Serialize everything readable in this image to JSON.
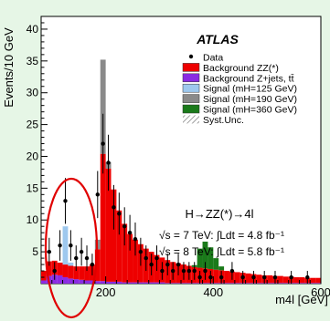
{
  "chart_data": {
    "type": "bar",
    "stacked": true,
    "title": "ATLAS",
    "xlabel": "m4l [GeV]",
    "ylabel": "Events/10 GeV",
    "xlim": [
      80,
      600
    ],
    "ylim": [
      0,
      42
    ],
    "x_ticks": [
      "200",
      "400",
      "600"
    ],
    "y_ticks": [
      "5",
      "10",
      "15",
      "20",
      "25",
      "30",
      "35",
      "40"
    ],
    "bin_width": 10,
    "bin_low_edges": [
      80,
      90,
      100,
      110,
      120,
      130,
      140,
      150,
      160,
      170,
      180,
      190,
      200,
      210,
      220,
      230,
      240,
      250,
      260,
      270,
      280,
      290,
      300,
      310,
      320,
      330,
      340,
      350,
      360,
      370,
      380,
      390,
      400,
      410,
      420,
      430,
      440,
      450,
      460,
      470,
      480,
      490,
      500,
      510,
      520,
      530,
      540,
      550,
      560,
      570,
      580,
      590
    ],
    "series": [
      {
        "name": "Background Z+jets, tt̄",
        "color": "#8a2be2",
        "values": [
          0.5,
          1.2,
          1.4,
          1.3,
          1.0,
          0.8,
          0.7,
          0.6,
          0.5,
          0.5,
          0.4,
          0.4,
          0.3,
          0.3,
          0.3,
          0.2,
          0.2,
          0.2,
          0.2,
          0.2,
          0.2,
          0.2,
          0.2,
          0.1,
          0.1,
          0.1,
          0.1,
          0.1,
          0.1,
          0.1,
          0.1,
          0.1,
          0.1,
          0.1,
          0.1,
          0.1,
          0.1,
          0.1,
          0.1,
          0.1,
          0.1,
          0.1,
          0.1,
          0.1,
          0.1,
          0.1,
          0.1,
          0.1,
          0.1,
          0.1,
          0.1,
          0.1
        ]
      },
      {
        "name": "Background ZZ(*)",
        "color": "#ee0000",
        "values": [
          1.5,
          2.3,
          2.2,
          2.0,
          2.0,
          2.0,
          2.0,
          2.1,
          2.2,
          2.5,
          5.0,
          20.0,
          17.8,
          14.5,
          11.2,
          9.2,
          7.6,
          6.7,
          6.0,
          5.3,
          4.8,
          4.3,
          3.9,
          3.6,
          3.3,
          3.1,
          2.9,
          2.7,
          2.5,
          2.4,
          2.3,
          2.2,
          2.1,
          2.0,
          1.9,
          1.8,
          1.7,
          1.6,
          1.5,
          1.4,
          1.3,
          1.2,
          1.2,
          1.1,
          1.1,
          1.0,
          1.0,
          0.9,
          0.9,
          0.8,
          0.8,
          0.8
        ]
      },
      {
        "name": "Signal (mH=125 GeV)",
        "color": "#9ec8ee",
        "values": [
          0,
          0,
          0,
          0,
          6.0,
          0.5,
          0,
          0,
          0,
          0,
          0,
          0,
          0,
          0,
          0,
          0,
          0,
          0,
          0,
          0,
          0,
          0,
          0,
          0,
          0,
          0,
          0,
          0,
          0,
          0,
          0,
          0,
          0,
          0,
          0,
          0,
          0,
          0,
          0,
          0,
          0,
          0,
          0,
          0,
          0,
          0,
          0,
          0,
          0,
          0,
          0,
          0
        ]
      },
      {
        "name": "Signal (mH=190 GeV)",
        "color": "#8a8a8a",
        "values": [
          0,
          0,
          0,
          0,
          0,
          0,
          0,
          0,
          0,
          0,
          1.5,
          14.8,
          1.0,
          0,
          0,
          0,
          0,
          0,
          0,
          0,
          0,
          0,
          0,
          0,
          0,
          0,
          0,
          0,
          0,
          0,
          0,
          0,
          0,
          0,
          0,
          0,
          0,
          0,
          0,
          0,
          0,
          0,
          0,
          0,
          0,
          0,
          0,
          0,
          0,
          0,
          0,
          0
        ]
      },
      {
        "name": "Signal (mH=360 GeV)",
        "color": "#1a7a1a",
        "values": [
          0,
          0,
          0,
          0,
          0,
          0,
          0,
          0,
          0,
          0,
          0,
          0,
          0,
          0,
          0,
          0,
          0,
          0,
          0,
          0,
          0,
          0,
          0,
          0,
          0,
          0,
          0,
          0,
          0.3,
          3.0,
          4.2,
          3.4,
          1.8,
          0.6,
          0,
          0,
          0,
          0,
          0,
          0,
          0,
          0,
          0,
          0,
          0,
          0,
          0,
          0,
          0,
          0,
          0,
          0
        ]
      }
    ],
    "data_points": [
      {
        "x": 95,
        "y": 5,
        "err": 2.2
      },
      {
        "x": 105,
        "y": 2,
        "err": 1.4
      },
      {
        "x": 115,
        "y": 6,
        "err": 2.4
      },
      {
        "x": 125,
        "y": 13,
        "err": 3.6
      },
      {
        "x": 135,
        "y": 6,
        "err": 2.4
      },
      {
        "x": 145,
        "y": 4,
        "err": 2.0
      },
      {
        "x": 155,
        "y": 5,
        "err": 2.2
      },
      {
        "x": 165,
        "y": 4,
        "err": 2.0
      },
      {
        "x": 175,
        "y": 3,
        "err": 1.7
      },
      {
        "x": 185,
        "y": 14,
        "err": 3.7
      },
      {
        "x": 195,
        "y": 22,
        "err": 4.7
      },
      {
        "x": 205,
        "y": 19,
        "err": 4.4
      },
      {
        "x": 215,
        "y": 12,
        "err": 3.5
      },
      {
        "x": 225,
        "y": 11,
        "err": 3.3
      },
      {
        "x": 235,
        "y": 9,
        "err": 3.0
      },
      {
        "x": 245,
        "y": 8,
        "err": 2.8
      },
      {
        "x": 255,
        "y": 7,
        "err": 2.6
      },
      {
        "x": 265,
        "y": 5,
        "err": 2.2
      },
      {
        "x": 275,
        "y": 4,
        "err": 2.0
      },
      {
        "x": 285,
        "y": 3,
        "err": 1.7
      },
      {
        "x": 295,
        "y": 4,
        "err": 2.0
      },
      {
        "x": 305,
        "y": 2,
        "err": 1.4
      },
      {
        "x": 315,
        "y": 3,
        "err": 1.7
      },
      {
        "x": 325,
        "y": 2,
        "err": 1.4
      },
      {
        "x": 335,
        "y": 3,
        "err": 1.7
      },
      {
        "x": 345,
        "y": 2,
        "err": 1.4
      },
      {
        "x": 355,
        "y": 2,
        "err": 1.4
      },
      {
        "x": 365,
        "y": 2,
        "err": 1.4
      },
      {
        "x": 375,
        "y": 1,
        "err": 1.0
      },
      {
        "x": 385,
        "y": 2,
        "err": 1.4
      },
      {
        "x": 395,
        "y": 1,
        "err": 1.0
      },
      {
        "x": 415,
        "y": 1,
        "err": 1.0
      },
      {
        "x": 435,
        "y": 2,
        "err": 1.4
      },
      {
        "x": 455,
        "y": 1,
        "err": 1.0
      },
      {
        "x": 475,
        "y": 1,
        "err": 1.0
      },
      {
        "x": 495,
        "y": 1,
        "err": 1.0
      },
      {
        "x": 515,
        "y": 1,
        "err": 1.0
      },
      {
        "x": 545,
        "y": 1,
        "err": 1.0
      },
      {
        "x": 575,
        "y": 1,
        "err": 1.0
      }
    ],
    "legend": [
      {
        "label": "Data",
        "kind": "marker",
        "color": "#000000"
      },
      {
        "label": "Background ZZ(*)",
        "kind": "box",
        "color": "#ee0000"
      },
      {
        "label": "Background Z+jets, tt̄",
        "kind": "box",
        "color": "#8a2be2"
      },
      {
        "label": "Signal (mH=125 GeV)",
        "kind": "box",
        "color": "#9ec8ee"
      },
      {
        "label": "Signal (mH=190 GeV)",
        "kind": "box",
        "color": "#8a8a8a"
      },
      {
        "label": "Signal (mH=360 GeV)",
        "kind": "box",
        "color": "#1a7a1a"
      },
      {
        "label": "Syst.Unc.",
        "kind": "hatch",
        "color": "#777777"
      }
    ],
    "legend_placement": "top-right",
    "annotations": [
      "H→ZZ(*)→4l",
      "√s = 7 TeV: ∫Ldt = 4.8 fb⁻¹",
      "√s = 8 TeV: ∫Ldt = 5.8 fb⁻¹"
    ],
    "highlight": {
      "shape": "ellipse",
      "color": "#ee0000",
      "center_x": 110,
      "center_y": 4
    }
  }
}
